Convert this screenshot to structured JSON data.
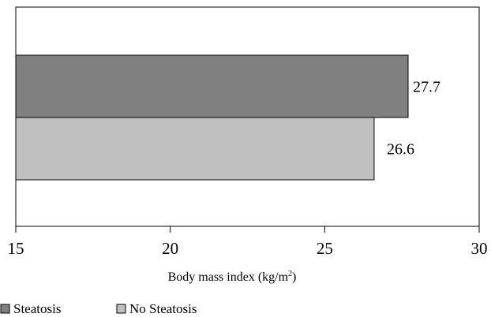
{
  "chart_data": {
    "type": "bar",
    "orientation": "horizontal",
    "title": "",
    "xlabel": "Body mass index (kg/m²)",
    "xlabel_base": "Body mass index (kg/m",
    "xlabel_sup": "2",
    "xlabel_tail": ")",
    "ylabel": "",
    "xlim": [
      15,
      30
    ],
    "xticks": [
      15,
      20,
      25,
      30
    ],
    "grid": false,
    "legend_position": "bottom",
    "series": [
      {
        "name": "Steatosis",
        "value": 27.7,
        "label": "27.7",
        "color": "#808080"
      },
      {
        "name": "No Steatosis",
        "value": 26.6,
        "label": "26.6",
        "color": "#c0c0c0"
      }
    ]
  }
}
